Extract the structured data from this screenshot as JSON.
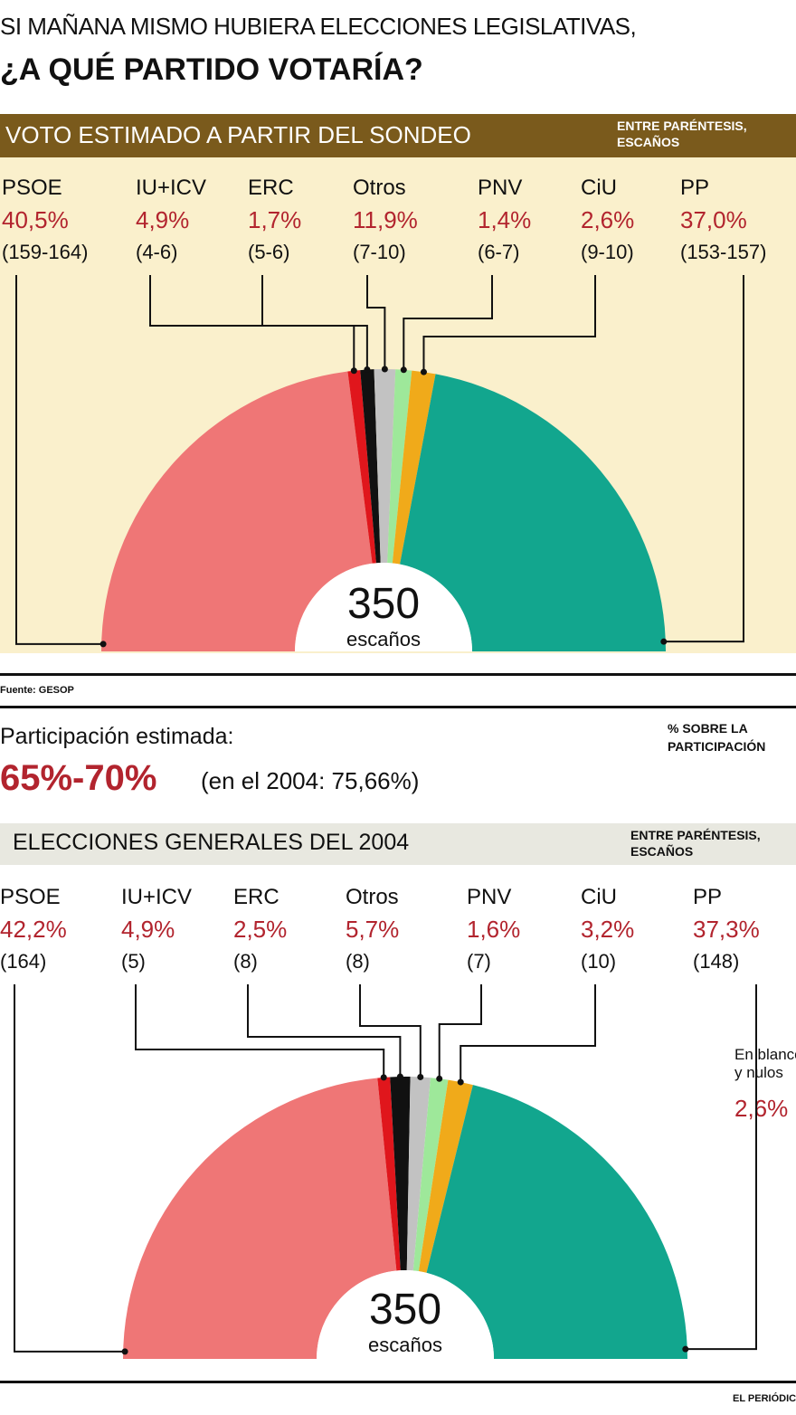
{
  "header": {
    "question_line1": "SI MAÑANA MISMO HUBIERA ELECCIONES LEGISLATIVAS,",
    "question_line2": "¿A QUÉ PARTIDO VOTARÍA?"
  },
  "source": "Fuente: GESOP",
  "participation": {
    "label": "Participación estimada:",
    "value": "65%-70%",
    "previous": "(en el 2004: 75,66%)",
    "note": "% SOBRE LA PARTICIPACIÓN"
  },
  "credit": "EL PERIÓDICO",
  "chart_data": [
    {
      "type": "semi-donut",
      "title": "VOTO ESTIMADO A PARTIR DEL SONDEO",
      "note": "ENTRE PARÉNTESIS, ESCAÑOS",
      "total_seats": "350",
      "total_label": "escaños",
      "series": [
        {
          "name": "PSOE",
          "percent": "40,5%",
          "seats": "(159-164)",
          "seat_value": 161.5,
          "color": "#ef7676"
        },
        {
          "name": "IU+ICV",
          "percent": "4,9%",
          "seats": "(4-6)",
          "seat_value": 5,
          "color": "#e0161c"
        },
        {
          "name": "ERC",
          "percent": "1,7%",
          "seats": "(5-6)",
          "seat_value": 5.5,
          "color": "#111111"
        },
        {
          "name": "Otros",
          "percent": "11,9%",
          "seats": "(7-10)",
          "seat_value": 8.5,
          "color": "#c2c2c2"
        },
        {
          "name": "PNV",
          "percent": "1,4%",
          "seats": "(6-7)",
          "seat_value": 6.5,
          "color": "#9ee89a"
        },
        {
          "name": "CiU",
          "percent": "2,6%",
          "seats": "(9-10)",
          "seat_value": 9.5,
          "color": "#f0aa1a"
        },
        {
          "name": "PP",
          "percent": "37,0%",
          "seats": "(153-157)",
          "seat_value": 155,
          "color": "#12a68e"
        }
      ]
    },
    {
      "type": "semi-donut",
      "title": "ELECCIONES GENERALES DEL 2004",
      "note": "ENTRE PARÉNTESIS, ESCAÑOS",
      "total_seats": "350",
      "total_label": "escaños",
      "blank_label_line1": "En blanco",
      "blank_label_line2": "y nulos",
      "blank_percent": "2,6%",
      "series": [
        {
          "name": "PSOE",
          "percent": "42,2%",
          "seats": "(164)",
          "seat_value": 164,
          "color": "#ef7676"
        },
        {
          "name": "IU+ICV",
          "percent": "4,9%",
          "seats": "(5)",
          "seat_value": 5,
          "color": "#e0161c"
        },
        {
          "name": "ERC",
          "percent": "2,5%",
          "seats": "(8)",
          "seat_value": 8,
          "color": "#111111"
        },
        {
          "name": "Otros",
          "percent": "5,7%",
          "seats": "(8)",
          "seat_value": 8,
          "color": "#c2c2c2"
        },
        {
          "name": "PNV",
          "percent": "1,6%",
          "seats": "(7)",
          "seat_value": 7,
          "color": "#9ee89a"
        },
        {
          "name": "CiU",
          "percent": "3,2%",
          "seats": "(10)",
          "seat_value": 10,
          "color": "#f0aa1a"
        },
        {
          "name": "PP",
          "percent": "37,3%",
          "seats": "(148)",
          "seat_value": 148,
          "color": "#12a68e"
        }
      ]
    }
  ]
}
